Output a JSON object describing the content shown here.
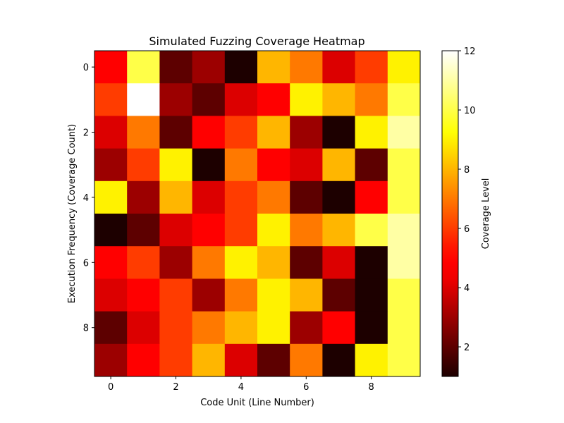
{
  "chart_data": {
    "type": "heatmap",
    "title": "Simulated Fuzzing Coverage Heatmap",
    "xlabel": "Code Unit (Line Number)",
    "ylabel": "Execution Frequency (Coverage Count)",
    "colorbar_label": "Coverage Level",
    "colormap": "hot",
    "vmin": 1,
    "vmax": 12,
    "x_ticks": [
      0,
      2,
      4,
      6,
      8
    ],
    "y_ticks": [
      0,
      2,
      4,
      6,
      8
    ],
    "colorbar_ticks": [
      2,
      4,
      6,
      8,
      10,
      12
    ],
    "grid": false,
    "values": [
      [
        5,
        10,
        2,
        3,
        1,
        8,
        7,
        4,
        6,
        9
      ],
      [
        6,
        12,
        3,
        2,
        4,
        5,
        9,
        8,
        7,
        10
      ],
      [
        4,
        7,
        2,
        5,
        6,
        8,
        3,
        1,
        9,
        11
      ],
      [
        3,
        6,
        9,
        1,
        7,
        5,
        4,
        8,
        2,
        10
      ],
      [
        9,
        3,
        8,
        4,
        6,
        7,
        2,
        1,
        5,
        10
      ],
      [
        1,
        2,
        4,
        5,
        6,
        9,
        7,
        8,
        10,
        11
      ],
      [
        5,
        6,
        3,
        7,
        9,
        8,
        2,
        4,
        1,
        11
      ],
      [
        4,
        5,
        6,
        3,
        7,
        9,
        8,
        2,
        1,
        10
      ],
      [
        2,
        4,
        6,
        7,
        8,
        9,
        3,
        5,
        1,
        10
      ],
      [
        3,
        5,
        6,
        8,
        4,
        2,
        7,
        1,
        9,
        10
      ]
    ]
  }
}
